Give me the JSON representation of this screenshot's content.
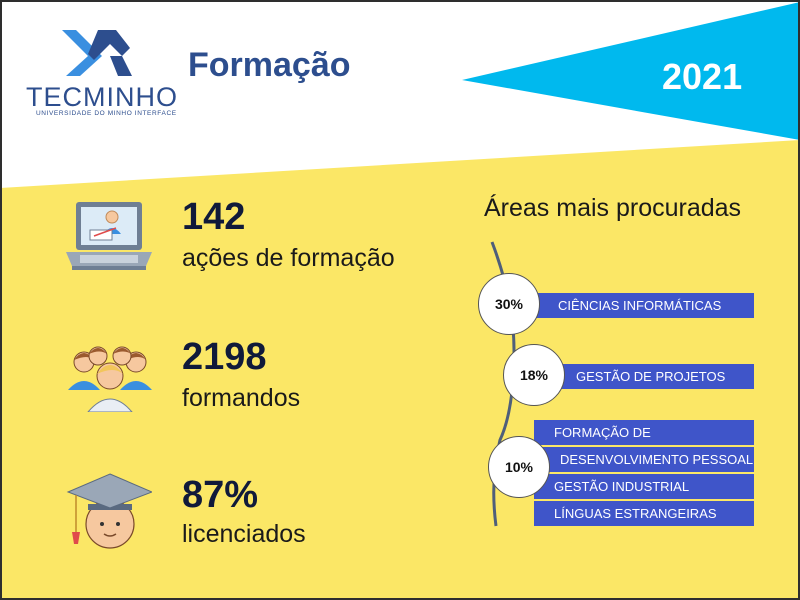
{
  "logo": {
    "name": "TECMINHO",
    "subtitle": "UNIVERSIDADE DO MINHO INTERFACE",
    "color_dark": "#2D4E8E",
    "color_light": "#3A8FE0"
  },
  "header": {
    "title": "Formação",
    "year": "2021"
  },
  "colors": {
    "background_yellow": "#FBE766",
    "accent_cyan": "#00B9EE",
    "bar_blue": "#3F55C9",
    "title_blue": "#2D4E8E"
  },
  "stats": [
    {
      "icon": "laptop-presentation-icon",
      "value": "142",
      "label": "ações de formação"
    },
    {
      "icon": "people-group-icon",
      "value": "2198",
      "label": "formandos"
    },
    {
      "icon": "graduate-cap-icon",
      "value": "87%",
      "label": "licenciados"
    }
  ],
  "areas": {
    "title": "Áreas mais procuradas",
    "groups": [
      {
        "percent": "30%",
        "items": [
          "CIÊNCIAS INFORMÁTICAS"
        ]
      },
      {
        "percent": "18%",
        "items": [
          "GESTÃO DE PROJETOS"
        ]
      },
      {
        "percent": "10%",
        "items": [
          "FORMAÇÃO DE EFORMADORES",
          "DESENVOLVIMENTO PESSOAL",
          "GESTÃO INDUSTRIAL",
          "LÍNGUAS ESTRANGEIRAS"
        ]
      }
    ]
  }
}
